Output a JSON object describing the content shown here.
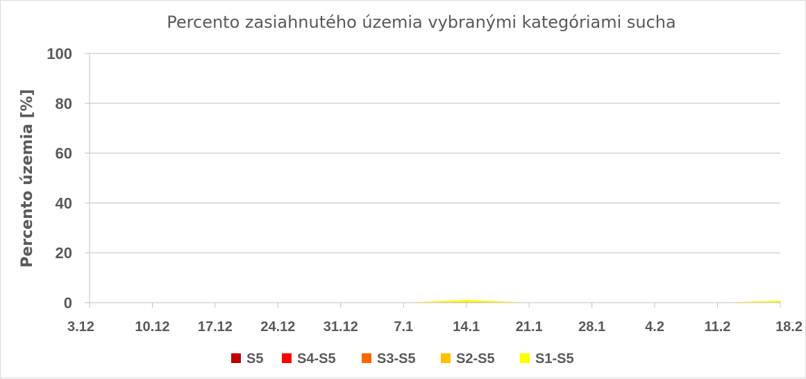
{
  "chart_data": {
    "type": "area",
    "title": "Percento zasiahnutého územia vybranými kategóriami sucha",
    "xlabel": "",
    "ylabel": "Percento územia  [%]",
    "ylim": [
      0,
      100
    ],
    "yticks": [
      "0",
      "20",
      "40",
      "60",
      "80",
      "100"
    ],
    "grid": true,
    "legend_position": "bottom",
    "categories": [
      "3.12",
      "10.12",
      "17.12",
      "24.12",
      "31.12",
      "7.1",
      "14.1",
      "21.1",
      "28.1",
      "4.2",
      "11.2",
      "18.2"
    ],
    "series": [
      {
        "name": "S5",
        "color": "#c00000",
        "values": [
          0,
          0,
          0,
          0,
          0,
          0,
          0,
          0,
          0,
          0,
          0,
          0
        ]
      },
      {
        "name": "S4-S5",
        "color": "#ff0000",
        "values": [
          0,
          0,
          0,
          0,
          0,
          0,
          0,
          0,
          0,
          0,
          0,
          0
        ]
      },
      {
        "name": "S3-S5",
        "color": "#ff6600",
        "values": [
          0,
          0,
          0,
          0,
          0,
          0,
          0,
          0,
          0,
          0,
          0,
          0
        ]
      },
      {
        "name": "S2-S5",
        "color": "#ffc000",
        "values": [
          0,
          0,
          0,
          0,
          0,
          0,
          0.3,
          0,
          0,
          0,
          0,
          0.2
        ]
      },
      {
        "name": "S1-S5",
        "color": "#ffff00",
        "values": [
          0,
          0,
          0,
          0,
          0,
          0,
          1.1,
          0,
          0,
          0,
          0,
          0.8
        ]
      }
    ]
  }
}
